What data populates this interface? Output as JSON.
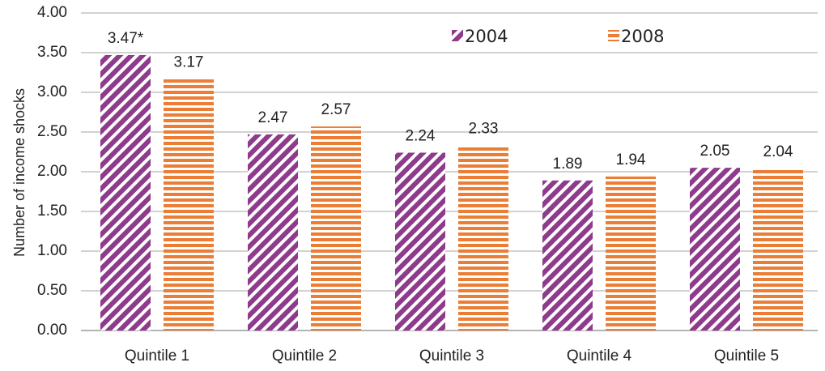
{
  "chart_data": {
    "type": "bar",
    "categories": [
      "Quintile 1",
      "Quintile 2",
      "Quintile 3",
      "Quintile 4",
      "Quintile 5"
    ],
    "series": [
      {
        "name": "2004",
        "values": [
          3.47,
          2.47,
          2.24,
          1.89,
          2.05
        ],
        "labels": [
          "3.47*",
          "2.47",
          "2.24",
          "1.89",
          "2.05"
        ],
        "color": "#8e3b8c",
        "pattern": "diagonal-stripes"
      },
      {
        "name": "2008",
        "values": [
          3.17,
          2.57,
          2.33,
          1.94,
          2.04
        ],
        "labels": [
          "3.17",
          "2.57",
          "2.33",
          "1.94",
          "2.04"
        ],
        "color": "#ec7d35",
        "pattern": "horizontal-stripes"
      }
    ],
    "yticks": [
      "0.00",
      "0.50",
      "1.00",
      "1.50",
      "2.00",
      "2.50",
      "3.00",
      "3.50",
      "4.00"
    ],
    "ylim": [
      0,
      4
    ],
    "title": "",
    "xlabel": "",
    "ylabel": "Number of income shocks",
    "grid": true,
    "legend_position": "top-right"
  }
}
